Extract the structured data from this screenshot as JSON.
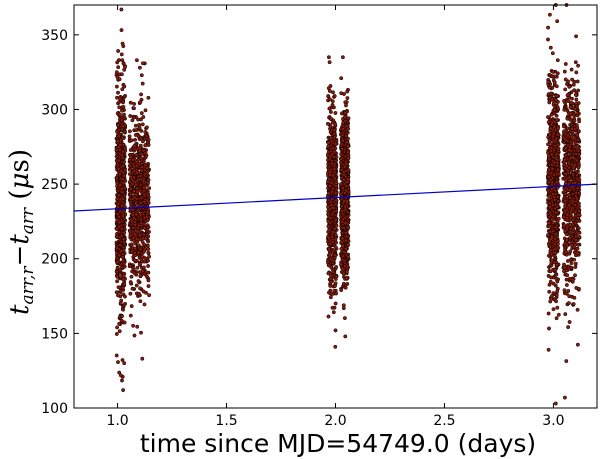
{
  "chart_data": {
    "type": "scatter",
    "title": "",
    "xlabel": "time since MJD=54749.0 (days)",
    "ylabel": {
      "base": "t",
      "sub_r": "arr,r",
      "dash": "−",
      "sub": "arr",
      "unit_open": " (",
      "mu": "μ",
      "unit_close": "s)"
    },
    "xlim": [
      0.8,
      3.2
    ],
    "ylim": [
      100,
      370
    ],
    "xticks": [
      1.0,
      1.5,
      2.0,
      2.5,
      3.0
    ],
    "xtick_labels": [
      "1.0",
      "1.5",
      "2.0",
      "2.5",
      "3.0"
    ],
    "yticks": [
      100,
      150,
      200,
      250,
      300,
      350
    ],
    "ytick_labels": [
      "100",
      "150",
      "200",
      "250",
      "300",
      "350"
    ],
    "grid": false,
    "series": [
      {
        "type": "scatter",
        "color": "#8b1a0a",
        "edge_color": "#000000",
        "clusters": [
          {
            "x_range": [
              0.995,
              1.035
            ],
            "y_center": 240,
            "y_spread": 38,
            "y_min": 112,
            "y_max": 367
          },
          {
            "x_range": [
              1.055,
              1.145
            ],
            "y_center": 238,
            "y_spread": 30,
            "y_min": 133,
            "y_max": 333
          },
          {
            "x_range": [
              1.965,
              2.005
            ],
            "y_center": 242,
            "y_spread": 28,
            "y_min": 141,
            "y_max": 335
          },
          {
            "x_range": [
              2.025,
              2.06
            ],
            "y_center": 243,
            "y_spread": 28,
            "y_min": 148,
            "y_max": 335
          },
          {
            "x_range": [
              2.975,
              3.025
            ],
            "y_center": 250,
            "y_spread": 36,
            "y_min": 103,
            "y_max": 370
          },
          {
            "x_range": [
              3.045,
              3.12
            ],
            "y_center": 248,
            "y_spread": 34,
            "y_min": 107,
            "y_max": 370
          }
        ]
      },
      {
        "type": "line",
        "color": "#0000cc",
        "x": [
          0.8,
          3.2
        ],
        "y": [
          232,
          250
        ]
      }
    ]
  }
}
